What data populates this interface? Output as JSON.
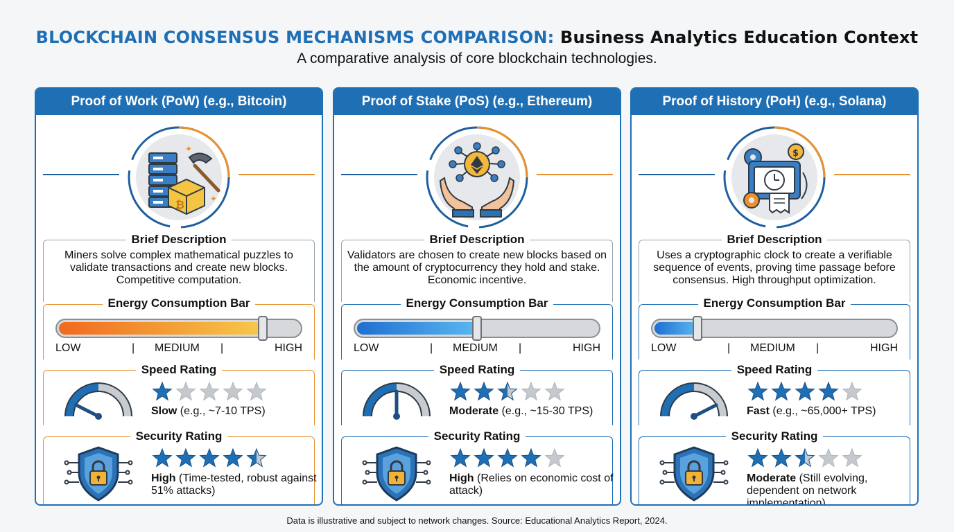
{
  "header": {
    "title_highlight": "BLOCKCHAIN CONSENSUS MECHANISMS COMPARISON:",
    "title_rest": "Business Analytics Education Context",
    "subtitle": "A comparative analysis of core blockchain technologies."
  },
  "labels": {
    "brief_description": "Brief Description",
    "energy_bar": "Energy Consumption Bar",
    "speed_rating": "Speed Rating",
    "security_rating": "Security Rating",
    "low": "LOW",
    "medium": "MEDIUM",
    "high": "HIGH",
    "divider": "|"
  },
  "cards": [
    {
      "title": "Proof of Work (PoW) (e.g., Bitcoin)",
      "icon": "mining-server-pickaxe-icon",
      "description": "Miners solve complex mathematical puzzles to validate transactions and create new blocks. Competitive computation.",
      "energy_level": 0.85,
      "energy_colors": [
        "#f06a1e",
        "#f7c94a"
      ],
      "speed_stars": 1,
      "speed_label": "Slow",
      "speed_detail": "(e.g., ~7-10 TPS)",
      "speed_gauge": 0.15,
      "security_stars": 4.5,
      "security_label": "High",
      "security_detail": "(Time-tested, robust against 51% attacks)"
    },
    {
      "title": "Proof of Stake (PoS) (e.g., Ethereum)",
      "icon": "staking-hands-ethereum-icon",
      "description": "Validators are chosen to create new blocks based on the amount of cryptocurrency they hold and stake. Economic incentive.",
      "energy_level": 0.5,
      "energy_colors": [
        "#1f6fd1",
        "#5ab8f0"
      ],
      "speed_stars": 2.5,
      "speed_label": "Moderate",
      "speed_detail": "(e.g., ~15-30 TPS)",
      "speed_gauge": 0.5,
      "security_stars": 4,
      "security_label": "High",
      "security_detail": "(Relies on economic cost of attack)"
    },
    {
      "title": "Proof of History (PoH) (e.g., Solana)",
      "icon": "cryptographic-clock-icon",
      "description": "Uses a cryptographic clock to create a verifiable sequence of events, proving time passage before consensus. High throughput optimization.",
      "energy_level": 0.18,
      "energy_colors": [
        "#1f6fd1",
        "#5ab8f0"
      ],
      "speed_stars": 4,
      "speed_label": "Fast",
      "speed_detail": "(e.g., ~65,000+ TPS)",
      "speed_gauge": 0.85,
      "security_stars": 2.5,
      "security_label": "Moderate",
      "security_detail": "(Still evolving, dependent on network implementation)"
    }
  ],
  "footer": "Data is illustrative and subject to network changes. Source: Educational Analytics Report, 2024."
}
